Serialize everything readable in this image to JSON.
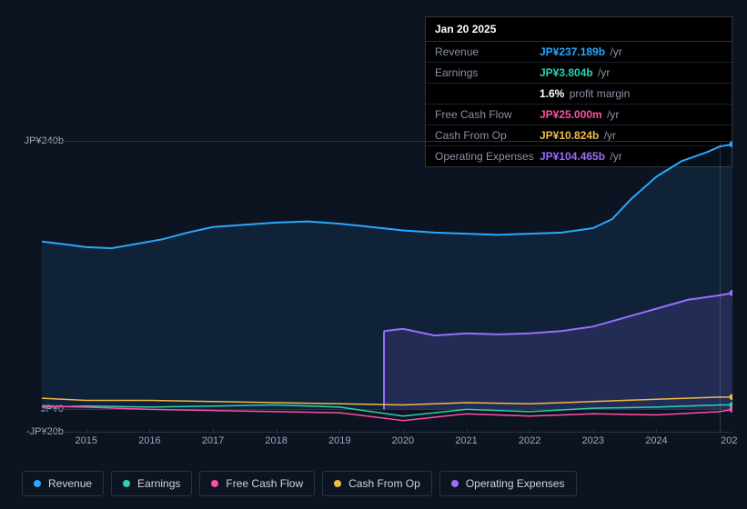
{
  "tooltip": {
    "date": "Jan 20 2025",
    "rows": [
      {
        "label": "Revenue",
        "value": "JP¥237.189b",
        "suffix": "/yr",
        "color": "#2aa7ff"
      },
      {
        "label": "Earnings",
        "value": "JP¥3.804b",
        "suffix": "/yr",
        "color": "#2ad1b0"
      },
      {
        "label": "",
        "value": "1.6%",
        "suffix": "profit margin",
        "color": "#ffffff"
      },
      {
        "label": "Free Cash Flow",
        "value": "JP¥25.000m",
        "suffix": "/yr",
        "color": "#ff4fa3"
      },
      {
        "label": "Cash From Op",
        "value": "JP¥10.824b",
        "suffix": "/yr",
        "color": "#f0b94a"
      },
      {
        "label": "Operating Expenses",
        "value": "JP¥104.465b",
        "suffix": "/yr",
        "color": "#9b6dff"
      }
    ]
  },
  "chart": {
    "type": "area-line",
    "background": "#0d1421",
    "grid_color": "#2a3140",
    "text_color": "#a0a7b8",
    "y": {
      "min": -20,
      "max": 240,
      "ticks": [
        {
          "v": 240,
          "label": "JP¥240b"
        },
        {
          "v": 0,
          "label": "JP¥0"
        },
        {
          "v": -20,
          "label": "-JP¥20b"
        }
      ]
    },
    "x": {
      "min": 2014.3,
      "max": 2025.2,
      "ticks": [
        2015,
        2016,
        2017,
        2018,
        2019,
        2020,
        2021,
        2022,
        2023,
        2024
      ],
      "last_label": "202"
    },
    "hover_x": 2025.0,
    "series": [
      {
        "name": "Revenue",
        "color": "#2aa7ff",
        "fill": "rgba(42,167,255,0.10)",
        "width": 2,
        "points": [
          [
            2014.3,
            150
          ],
          [
            2014.6,
            148
          ],
          [
            2015.0,
            145
          ],
          [
            2015.4,
            144
          ],
          [
            2015.8,
            148
          ],
          [
            2016.2,
            152
          ],
          [
            2016.6,
            158
          ],
          [
            2017.0,
            163
          ],
          [
            2017.5,
            165
          ],
          [
            2018.0,
            167
          ],
          [
            2018.5,
            168
          ],
          [
            2019.0,
            166
          ],
          [
            2019.5,
            163
          ],
          [
            2020.0,
            160
          ],
          [
            2020.5,
            158
          ],
          [
            2021.0,
            157
          ],
          [
            2021.5,
            156
          ],
          [
            2022.0,
            157
          ],
          [
            2022.5,
            158
          ],
          [
            2023.0,
            162
          ],
          [
            2023.3,
            170
          ],
          [
            2023.6,
            188
          ],
          [
            2024.0,
            208
          ],
          [
            2024.4,
            222
          ],
          [
            2024.8,
            230
          ],
          [
            2025.0,
            235
          ],
          [
            2025.2,
            237
          ]
        ]
      },
      {
        "name": "Operating Expenses",
        "color": "#9b6dff",
        "fill": "rgba(155,109,255,0.15)",
        "width": 2,
        "start_x": 2019.7,
        "points": [
          [
            2019.7,
            70
          ],
          [
            2020.0,
            72
          ],
          [
            2020.5,
            66
          ],
          [
            2021.0,
            68
          ],
          [
            2021.5,
            67
          ],
          [
            2022.0,
            68
          ],
          [
            2022.5,
            70
          ],
          [
            2023.0,
            74
          ],
          [
            2023.5,
            82
          ],
          [
            2024.0,
            90
          ],
          [
            2024.5,
            98
          ],
          [
            2025.0,
            102
          ],
          [
            2025.2,
            104
          ]
        ]
      },
      {
        "name": "Cash From Op",
        "color": "#f0b94a",
        "fill": null,
        "width": 1.5,
        "points": [
          [
            2014.3,
            10
          ],
          [
            2015.0,
            8
          ],
          [
            2016.0,
            8
          ],
          [
            2017.0,
            7
          ],
          [
            2018.0,
            6
          ],
          [
            2019.0,
            5
          ],
          [
            2020.0,
            4
          ],
          [
            2021.0,
            6
          ],
          [
            2022.0,
            5
          ],
          [
            2023.0,
            7
          ],
          [
            2024.0,
            9
          ],
          [
            2025.0,
            11
          ],
          [
            2025.2,
            11
          ]
        ]
      },
      {
        "name": "Earnings",
        "color": "#2ad1b0",
        "fill": null,
        "width": 1.5,
        "points": [
          [
            2014.3,
            2
          ],
          [
            2015.0,
            3
          ],
          [
            2016.0,
            2
          ],
          [
            2017.0,
            3
          ],
          [
            2018.0,
            4
          ],
          [
            2019.0,
            2
          ],
          [
            2020.0,
            -6
          ],
          [
            2020.5,
            -3
          ],
          [
            2021.0,
            0
          ],
          [
            2022.0,
            -2
          ],
          [
            2023.0,
            1
          ],
          [
            2024.0,
            2
          ],
          [
            2025.0,
            4
          ],
          [
            2025.2,
            4
          ]
        ]
      },
      {
        "name": "Free Cash Flow",
        "color": "#ff4fa3",
        "fill": null,
        "width": 1.5,
        "points": [
          [
            2014.3,
            3
          ],
          [
            2015.0,
            2
          ],
          [
            2016.0,
            0
          ],
          [
            2017.0,
            -1
          ],
          [
            2018.0,
            -2
          ],
          [
            2019.0,
            -3
          ],
          [
            2020.0,
            -10
          ],
          [
            2020.5,
            -7
          ],
          [
            2021.0,
            -4
          ],
          [
            2022.0,
            -6
          ],
          [
            2023.0,
            -4
          ],
          [
            2024.0,
            -5
          ],
          [
            2025.0,
            -2
          ],
          [
            2025.2,
            0
          ]
        ]
      }
    ],
    "legend": [
      {
        "label": "Revenue",
        "color": "#2aa7ff"
      },
      {
        "label": "Earnings",
        "color": "#2ad1b0"
      },
      {
        "label": "Free Cash Flow",
        "color": "#ff4fa3"
      },
      {
        "label": "Cash From Op",
        "color": "#f0b94a"
      },
      {
        "label": "Operating Expenses",
        "color": "#9b6dff"
      }
    ]
  }
}
